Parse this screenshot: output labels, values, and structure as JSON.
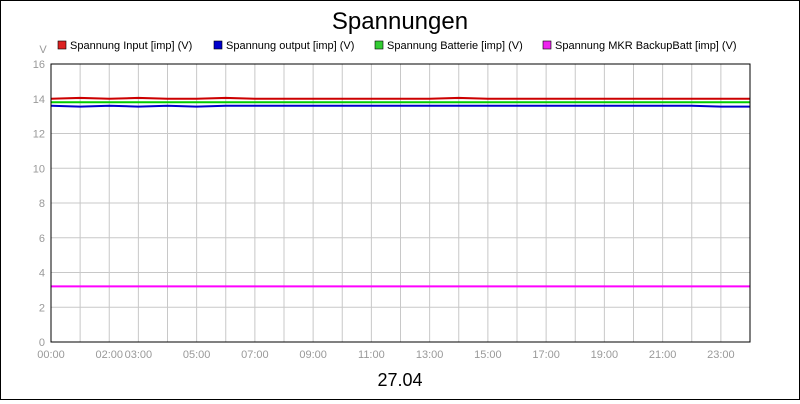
{
  "chart_data": {
    "type": "line",
    "title": "Spannungen",
    "ylabel": "V",
    "xlabel": "27.04",
    "ylim": [
      0,
      16
    ],
    "yticks": [
      0,
      2,
      4,
      6,
      8,
      10,
      12,
      14,
      16
    ],
    "x_range_hours": [
      0,
      24
    ],
    "xtick_labels": [
      {
        "hour": 0,
        "label": "00:00"
      },
      {
        "hour": 2,
        "label": "02:00"
      },
      {
        "hour": 3,
        "label": "03:00"
      },
      {
        "hour": 5,
        "label": "05:00"
      },
      {
        "hour": 7,
        "label": "07:00"
      },
      {
        "hour": 9,
        "label": "09:00"
      },
      {
        "hour": 11,
        "label": "11:00"
      },
      {
        "hour": 13,
        "label": "13:00"
      },
      {
        "hour": 15,
        "label": "15:00"
      },
      {
        "hour": 17,
        "label": "17:00"
      },
      {
        "hour": 19,
        "label": "19:00"
      },
      {
        "hour": 21,
        "label": "21:00"
      },
      {
        "hour": 23,
        "label": "23:00"
      }
    ],
    "grid": true,
    "legend_position": "top",
    "series": [
      {
        "name": "Spannung Input [imp] (V)",
        "color": "#cc0000",
        "legend_color": "#dd2222",
        "x": [
          0,
          1,
          2,
          3,
          4,
          5,
          6,
          7,
          8,
          9,
          10,
          11,
          12,
          13,
          14,
          15,
          16,
          17,
          18,
          19,
          20,
          21,
          22,
          23,
          24
        ],
        "y": [
          14.0,
          14.05,
          14.0,
          14.05,
          14.0,
          14.0,
          14.05,
          14.0,
          14.0,
          14.0,
          14.0,
          14.0,
          14.0,
          14.0,
          14.05,
          14.0,
          14.0,
          14.0,
          14.0,
          14.0,
          14.0,
          14.0,
          14.0,
          14.0,
          14.0
        ]
      },
      {
        "name": "Spannung output [imp] (V)",
        "color": "#0000cc",
        "legend_color": "#0000cc",
        "x": [
          0,
          1,
          2,
          3,
          4,
          5,
          6,
          7,
          8,
          9,
          10,
          11,
          12,
          13,
          14,
          15,
          16,
          17,
          18,
          19,
          20,
          21,
          22,
          23,
          24
        ],
        "y": [
          13.6,
          13.55,
          13.6,
          13.55,
          13.6,
          13.55,
          13.6,
          13.6,
          13.6,
          13.6,
          13.6,
          13.6,
          13.6,
          13.6,
          13.6,
          13.6,
          13.6,
          13.6,
          13.6,
          13.6,
          13.6,
          13.6,
          13.6,
          13.55,
          13.55
        ]
      },
      {
        "name": "Spannung Batterie [imp] (V)",
        "color": "#00cc00",
        "legend_color": "#33cc33",
        "x": [
          0,
          1,
          2,
          3,
          4,
          5,
          6,
          7,
          8,
          9,
          10,
          11,
          12,
          13,
          14,
          15,
          16,
          17,
          18,
          19,
          20,
          21,
          22,
          23,
          24
        ],
        "y": [
          13.8,
          13.8,
          13.8,
          13.8,
          13.8,
          13.8,
          13.8,
          13.8,
          13.8,
          13.8,
          13.8,
          13.8,
          13.8,
          13.8,
          13.8,
          13.8,
          13.8,
          13.8,
          13.8,
          13.8,
          13.8,
          13.8,
          13.8,
          13.8,
          13.8
        ]
      },
      {
        "name": "Spannung MKR BackupBatt [imp] (V)",
        "color": "#ff00ff",
        "legend_color": "#ee22ee",
        "x": [
          0,
          24
        ],
        "y": [
          3.2,
          3.2
        ]
      }
    ]
  }
}
